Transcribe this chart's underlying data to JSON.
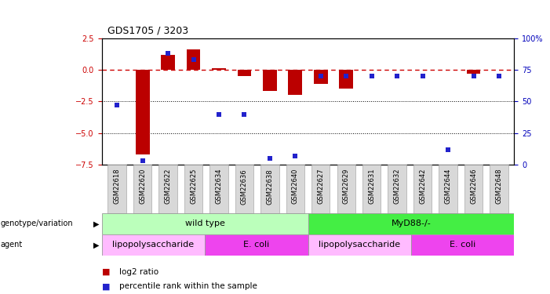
{
  "title": "GDS1705 / 3203",
  "samples": [
    "GSM22618",
    "GSM22620",
    "GSM22622",
    "GSM22625",
    "GSM22634",
    "GSM22636",
    "GSM22638",
    "GSM22640",
    "GSM22627",
    "GSM22629",
    "GSM22631",
    "GSM22632",
    "GSM22642",
    "GSM22644",
    "GSM22646",
    "GSM22648"
  ],
  "log2_ratio": [
    0.0,
    -6.7,
    1.2,
    1.6,
    0.1,
    -0.5,
    -1.7,
    -2.0,
    -1.1,
    -1.5,
    0.0,
    0.0,
    0.0,
    0.0,
    -0.3,
    0.0
  ],
  "percentile": [
    47,
    3,
    88,
    83,
    40,
    40,
    5,
    7,
    70,
    70,
    70,
    70,
    70,
    12,
    70,
    70
  ],
  "ylim_left": [
    -7.5,
    2.5
  ],
  "ylim_right": [
    0,
    100
  ],
  "hline_y": 0,
  "dotted_lines": [
    -2.5,
    -5.0
  ],
  "bar_color": "#bb0000",
  "dot_color": "#2222cc",
  "hline_color": "#cc0000",
  "bg_color": "#ffffff",
  "plot_bg": "#ffffff",
  "genotype_groups": [
    {
      "label": "wild type",
      "start": 0,
      "end": 8,
      "color": "#bbffbb"
    },
    {
      "label": "MyD88-/-",
      "start": 8,
      "end": 16,
      "color": "#44ee44"
    }
  ],
  "agent_groups": [
    {
      "label": "lipopolysaccharide",
      "start": 0,
      "end": 4,
      "color": "#ffbbff"
    },
    {
      "label": "E. coli",
      "start": 4,
      "end": 8,
      "color": "#ee44ee"
    },
    {
      "label": "lipopolysaccharide",
      "start": 8,
      "end": 12,
      "color": "#ffbbff"
    },
    {
      "label": "E. coli",
      "start": 12,
      "end": 16,
      "color": "#ee44ee"
    }
  ],
  "legend_items": [
    {
      "color": "#bb0000",
      "label": "log2 ratio"
    },
    {
      "color": "#2222cc",
      "label": "percentile rank within the sample"
    }
  ],
  "tick_color_left": "#cc0000",
  "tick_color_right": "#0000bb",
  "left_yticks": [
    2.5,
    0.0,
    -2.5,
    -5.0,
    -7.5
  ],
  "right_yticks": [
    100,
    75,
    50,
    25,
    0
  ],
  "bar_width": 0.55,
  "dot_size": 15
}
